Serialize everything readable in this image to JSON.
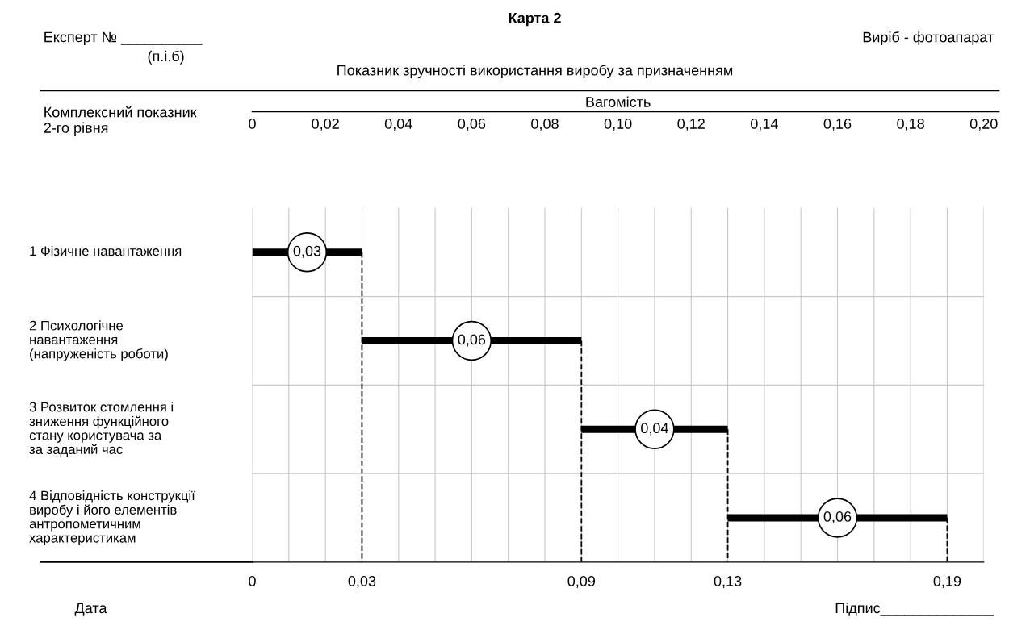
{
  "chart_data": {
    "type": "bar",
    "orientation": "horizontal",
    "title": "Карта 2",
    "subtitle": "Показник зручності використання виробу за призначенням",
    "xlabel": "Вагомість",
    "categories": [
      "1 Фізичне навантаження",
      "2 Психологічне\nнавантаження\n(напруженість роботи)",
      "3 Розвиток стомлення і\nзниження функційного\nстану користувача за\nза заданий час",
      "4 Відповідність конструкції\nвиробу і його елементів\nантропометичним\nхарактеристикам"
    ],
    "values": [
      0.03,
      0.06,
      0.04,
      0.06
    ],
    "base": [
      0,
      0.03,
      0.09,
      0.13
    ],
    "value_labels": [
      "0,03",
      "0,06",
      "0,04",
      "0,06"
    ],
    "color": "#000000",
    "xlim": [
      0,
      0.2
    ],
    "xticks": [
      0,
      {
        "value": 0.01,
        "label": null
      },
      {
        "value": 0.02,
        "label": "0,02"
      },
      {
        "value": 0.03,
        "label": null
      },
      {
        "value": 0.04,
        "label": "0,04"
      },
      {
        "value": 0.05,
        "label": null
      },
      {
        "value": 0.06,
        "label": "0,06"
      },
      {
        "value": 0.07,
        "label": null
      },
      {
        "value": 0.08,
        "label": "0,08"
      },
      {
        "value": 0.09,
        "label": null
      },
      {
        "value": 0.1,
        "label": "0,10"
      },
      {
        "value": 0.11,
        "label": null
      },
      {
        "value": 0.12,
        "label": "0,12"
      },
      {
        "value": 0.13,
        "label": null
      },
      {
        "value": 0.14,
        "label": "0,14"
      },
      {
        "value": 0.15,
        "label": null
      },
      {
        "value": 0.16,
        "label": "0,16"
      },
      {
        "value": 0.17,
        "label": null
      },
      {
        "value": 0.18,
        "label": "0,18"
      },
      {
        "value": 0.19,
        "label": null
      },
      {
        "value": 0.2,
        "label": "0,20"
      }
    ],
    "x2lim": [
      0,
      0.2
    ],
    "x2ticks": [
      0,
      {
        "value": 0.03,
        "label": "0,03"
      },
      {
        "value": 0.09,
        "label": "0,09"
      },
      {
        "value": 0.13,
        "label": "0,13"
      },
      {
        "value": 0.19,
        "label": "0,19"
      }
    ],
    "ref_lines": [
      {
        "axis": "x",
        "value": 0.03,
        "label": null,
        "line_style": "dashed",
        "color": "#000000"
      },
      {
        "axis": "x",
        "value": 0.09,
        "label": null,
        "line_style": "dashed",
        "color": "#000000"
      },
      {
        "axis": "x",
        "value": 0.13,
        "label": null,
        "line_style": "dashed",
        "color": "#000000"
      },
      {
        "axis": "x",
        "value": 0.19,
        "label": null,
        "line_style": "dashed",
        "color": "#000000"
      }
    ],
    "grid": "x",
    "annotations": [
      "Комплексний показник\n2-го рівня",
      "Експерт № __________",
      "(п.і.б)",
      "Виріб - фотоапарат",
      "Дата",
      "Підпис______________"
    ]
  }
}
